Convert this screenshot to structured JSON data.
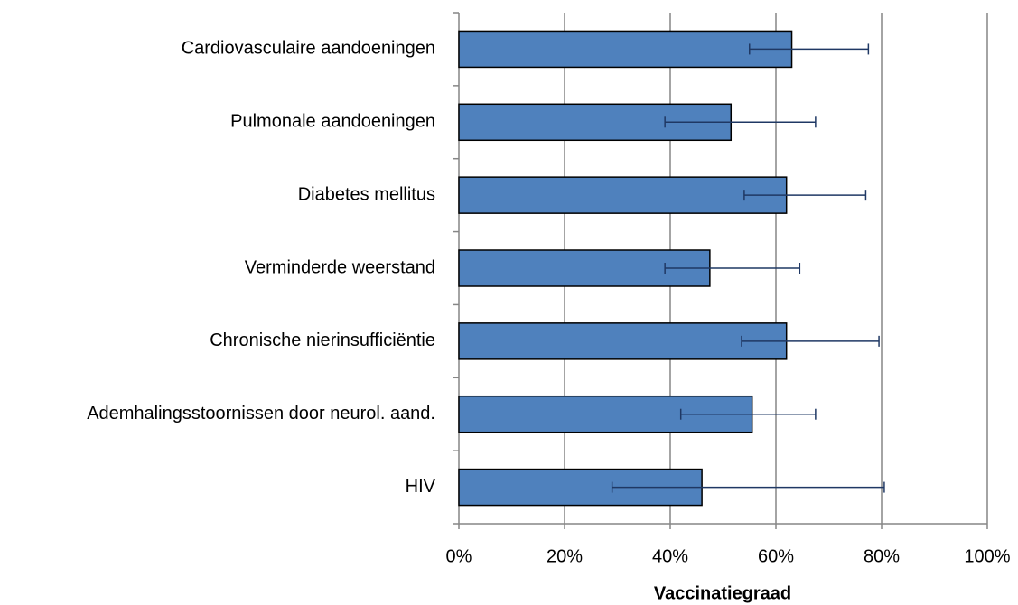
{
  "chart_data": {
    "type": "hbar",
    "xlabel": "Vaccinatiegraad",
    "categories": [
      "Cardiovasculaire aandoeningen",
      "Pulmonale aandoeningen",
      "Diabetes mellitus",
      "Verminderde weerstand",
      "Chronische nierinsufficiëntie",
      "Ademhalingsstoornissen door neurol. aand.",
      "HIV"
    ],
    "values": [
      63,
      51.5,
      62,
      47.5,
      62,
      55.5,
      46
    ],
    "error_low": [
      55,
      39,
      54,
      39,
      53.5,
      42,
      29
    ],
    "error_high": [
      77.5,
      67.5,
      77,
      64.5,
      79.5,
      67.5,
      80.5
    ],
    "color": "#4f81bd",
    "error_color": "#1f3864",
    "xlim": [
      0,
      100
    ],
    "xticks": [
      {
        "value": 0,
        "label": "0%"
      },
      {
        "value": 20,
        "label": "20%"
      },
      {
        "value": 40,
        "label": "40%"
      },
      {
        "value": 60,
        "label": "60%"
      },
      {
        "value": 80,
        "label": "80%"
      },
      {
        "value": 100,
        "label": "100%"
      }
    ],
    "grid": true
  }
}
